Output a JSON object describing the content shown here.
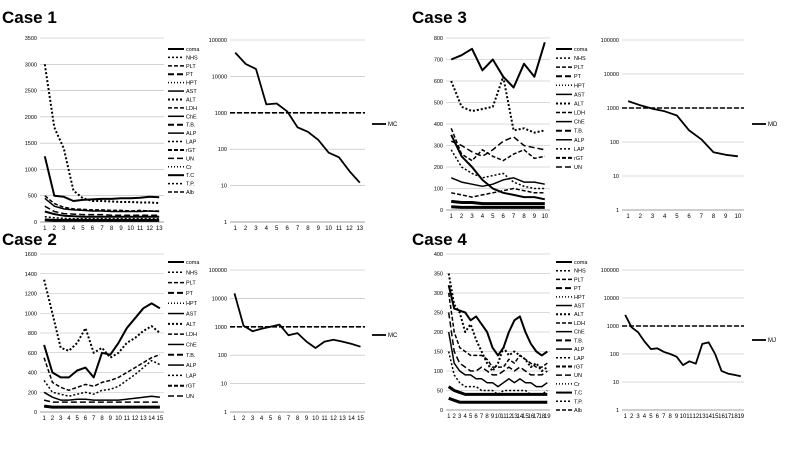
{
  "colors": {
    "line": "#000000",
    "grid": "#b8b8b8",
    "axis": "#888888"
  },
  "chart_data": [
    {
      "case_label": "Case 1",
      "type": "line",
      "x": [
        1,
        2,
        3,
        4,
        5,
        6,
        7,
        8,
        9,
        10,
        11,
        12,
        13
      ],
      "ylim": [
        0,
        3500
      ],
      "yticks": [
        0,
        500,
        1000,
        1500,
        2000,
        2500,
        3000,
        3500
      ],
      "legend": [
        "coma",
        "NHS",
        "PLT",
        "PT",
        "HPT",
        "AST",
        "ALT",
        "LDH",
        "ChE",
        "T.B.",
        "ALP",
        "LAP",
        "rGT",
        "UN",
        "Cr",
        "T.C",
        "T.P.",
        "Alb"
      ],
      "series": [
        {
          "values": [
            3000,
            1800,
            1400,
            600,
            450,
            400,
            400,
            390,
            380,
            380,
            370,
            370,
            360
          ],
          "dash": "2,2",
          "width": 2
        },
        {
          "values": [
            1250,
            500,
            480,
            400,
            420,
            430,
            440,
            440,
            450,
            450,
            460,
            480,
            470
          ],
          "dash": "",
          "width": 2
        },
        {
          "values": [
            500,
            350,
            280,
            250,
            240,
            230,
            230,
            220,
            220,
            210,
            220,
            210,
            210
          ],
          "dash": "4,2",
          "width": 1.5
        },
        {
          "values": [
            450,
            300,
            250,
            230,
            220,
            210,
            210,
            200,
            200,
            200,
            200,
            210,
            200
          ],
          "dash": "",
          "width": 1.5
        },
        {
          "values": [
            300,
            200,
            160,
            150,
            140,
            140,
            140,
            130,
            130,
            130,
            130,
            130,
            130
          ],
          "dash": "6,3",
          "width": 1.5
        },
        {
          "values": [
            200,
            150,
            120,
            110,
            100,
            100,
            100,
            100,
            100,
            100,
            100,
            100,
            100
          ],
          "dash": "",
          "width": 2
        },
        {
          "values": [
            100,
            80,
            70,
            60,
            60,
            60,
            60,
            60,
            60,
            60,
            60,
            60,
            60
          ],
          "dash": "2,2",
          "width": 1.5
        },
        {
          "values": [
            40,
            30,
            30,
            30,
            30,
            30,
            30,
            30,
            30,
            30,
            30,
            30,
            30
          ],
          "dash": "",
          "width": 3
        }
      ],
      "side": {
        "label": "MC",
        "scale": "log",
        "ylim": [
          1,
          100000
        ],
        "yticks": [
          1,
          10,
          100,
          1000,
          10000,
          100000
        ],
        "threshold": 1000,
        "x": [
          1,
          2,
          3,
          4,
          5,
          6,
          7,
          8,
          9,
          10,
          11,
          12,
          13
        ],
        "values": [
          45000,
          22000,
          16000,
          1700,
          1800,
          1100,
          400,
          300,
          180,
          80,
          60,
          25,
          12
        ]
      }
    },
    {
      "case_label": "Case 2",
      "type": "line",
      "x": [
        1,
        2,
        3,
        4,
        5,
        6,
        7,
        8,
        9,
        10,
        11,
        12,
        13,
        14,
        15
      ],
      "ylim": [
        0,
        1600
      ],
      "yticks": [
        0,
        200,
        400,
        600,
        800,
        1000,
        1200,
        1400,
        1600
      ],
      "legend": [
        "coma",
        "NHS",
        "PLT",
        "PT",
        "HPT",
        "AST",
        "ALT",
        "LDH",
        "ChE",
        "T.B.",
        "ALP",
        "LAP",
        "rGT",
        "UN"
      ],
      "series": [
        {
          "values": [
            1340,
            1000,
            650,
            620,
            700,
            850,
            600,
            650,
            550,
            600,
            700,
            750,
            820,
            870,
            800
          ],
          "dash": "2,2",
          "width": 2
        },
        {
          "values": [
            680,
            400,
            350,
            350,
            420,
            450,
            350,
            600,
            580,
            700,
            850,
            950,
            1050,
            1100,
            1050
          ],
          "dash": "",
          "width": 2
        },
        {
          "values": [
            550,
            300,
            250,
            220,
            250,
            280,
            260,
            300,
            320,
            350,
            400,
            450,
            500,
            550,
            580
          ],
          "dash": "4,2",
          "width": 1.5
        },
        {
          "values": [
            320,
            200,
            180,
            160,
            180,
            200,
            180,
            220,
            230,
            260,
            320,
            380,
            450,
            520,
            480
          ],
          "dash": "2,2",
          "width": 1.5
        },
        {
          "values": [
            200,
            150,
            120,
            120,
            130,
            130,
            120,
            120,
            120,
            120,
            130,
            140,
            150,
            160,
            150
          ],
          "dash": "",
          "width": 1.5
        },
        {
          "values": [
            120,
            100,
            100,
            100,
            100,
            100,
            100,
            100,
            100,
            100,
            100,
            100,
            100,
            100,
            100
          ],
          "dash": "6,3",
          "width": 1.5
        },
        {
          "values": [
            60,
            50,
            50,
            50,
            50,
            50,
            50,
            50,
            50,
            50,
            50,
            50,
            50,
            50,
            50
          ],
          "dash": "",
          "width": 3
        }
      ],
      "side": {
        "label": "MC",
        "scale": "log",
        "ylim": [
          1,
          100000
        ],
        "yticks": [
          1,
          10,
          100,
          1000,
          10000,
          100000
        ],
        "threshold": 1000,
        "x": [
          1,
          2,
          3,
          4,
          5,
          6,
          7,
          8,
          9,
          10,
          11,
          12,
          13,
          14,
          15
        ],
        "values": [
          15000,
          1100,
          700,
          850,
          1000,
          1200,
          500,
          600,
          300,
          180,
          300,
          350,
          300,
          250,
          200
        ]
      }
    },
    {
      "case_label": "Case 3",
      "type": "line",
      "x": [
        1,
        2,
        3,
        4,
        5,
        6,
        7,
        8,
        9,
        10
      ],
      "ylim": [
        0,
        800
      ],
      "yticks": [
        0,
        100,
        200,
        300,
        400,
        500,
        600,
        700,
        800
      ],
      "legend": [
        "coma",
        "NHS",
        "PLT",
        "PT",
        "HPT",
        "AST",
        "ALT",
        "LDH",
        "ChE",
        "T.B.",
        "ALP",
        "LAP",
        "rGT",
        "UN"
      ],
      "series": [
        {
          "values": [
            700,
            720,
            750,
            650,
            700,
            620,
            570,
            680,
            620,
            780
          ],
          "dash": "",
          "width": 2
        },
        {
          "values": [
            600,
            480,
            460,
            470,
            480,
            620,
            370,
            380,
            360,
            370
          ],
          "dash": "2,2",
          "width": 2
        },
        {
          "values": [
            380,
            260,
            230,
            280,
            250,
            230,
            260,
            280,
            240,
            250
          ],
          "dash": "4,2",
          "width": 1.5
        },
        {
          "values": [
            350,
            250,
            200,
            140,
            100,
            80,
            70,
            60,
            60,
            50
          ],
          "dash": "",
          "width": 2
        },
        {
          "values": [
            320,
            300,
            270,
            250,
            280,
            320,
            340,
            300,
            290,
            280
          ],
          "dash": "6,3",
          "width": 1.5
        },
        {
          "values": [
            280,
            200,
            170,
            150,
            160,
            170,
            130,
            110,
            100,
            100
          ],
          "dash": "2,2",
          "width": 1.5
        },
        {
          "values": [
            150,
            130,
            120,
            110,
            120,
            140,
            150,
            130,
            130,
            120
          ],
          "dash": "",
          "width": 1.5
        },
        {
          "values": [
            80,
            70,
            60,
            70,
            80,
            90,
            100,
            90,
            80,
            80
          ],
          "dash": "4,2",
          "width": 1.5
        },
        {
          "values": [
            40,
            35,
            35,
            30,
            30,
            30,
            30,
            30,
            30,
            30
          ],
          "dash": "",
          "width": 3
        },
        {
          "values": [
            15,
            12,
            12,
            12,
            12,
            12,
            12,
            12,
            12,
            12
          ],
          "dash": "",
          "width": 3
        }
      ],
      "side": {
        "label": "MD",
        "scale": "log",
        "ylim": [
          1,
          100000
        ],
        "yticks": [
          1,
          10,
          100,
          1000,
          10000,
          100000
        ],
        "threshold": 1000,
        "x": [
          1,
          2,
          3,
          4,
          5,
          6,
          7,
          8,
          9,
          10
        ],
        "values": [
          1600,
          1200,
          950,
          800,
          600,
          220,
          120,
          50,
          42,
          38
        ]
      }
    },
    {
      "case_label": "Case 4",
      "type": "line",
      "x": [
        1,
        2,
        3,
        4,
        5,
        6,
        7,
        8,
        9,
        10,
        11,
        12,
        13,
        14,
        15,
        16,
        17,
        18,
        19
      ],
      "ylim": [
        0,
        400
      ],
      "yticks": [
        0,
        50,
        100,
        150,
        200,
        250,
        300,
        350,
        400
      ],
      "legend": [
        "coma",
        "NHS",
        "PLT",
        "PT",
        "HPT",
        "AST",
        "ALT",
        "LDH",
        "ChE",
        "T.B.",
        "ALP",
        "LAP",
        "rGT",
        "UN",
        "Cr",
        "T.C",
        "T.P.",
        "Alb"
      ],
      "series": [
        {
          "values": [
            350,
            270,
            250,
            200,
            220,
            180,
            150,
            120,
            100,
            120,
            160,
            140,
            150,
            140,
            130,
            110,
            120,
            100,
            110
          ],
          "dash": "2,2",
          "width": 2
        },
        {
          "values": [
            320,
            260,
            255,
            250,
            230,
            240,
            220,
            200,
            160,
            140,
            160,
            200,
            230,
            240,
            200,
            170,
            150,
            140,
            150
          ],
          "dash": "",
          "width": 2
        },
        {
          "values": [
            300,
            200,
            160,
            150,
            140,
            140,
            140,
            130,
            110,
            110,
            110,
            130,
            120,
            140,
            130,
            120,
            110,
            110,
            120
          ],
          "dash": "4,2",
          "width": 1.5
        },
        {
          "values": [
            250,
            150,
            120,
            110,
            100,
            100,
            110,
            100,
            90,
            90,
            100,
            110,
            100,
            110,
            100,
            90,
            90,
            90,
            100
          ],
          "dash": "6,3",
          "width": 1.5
        },
        {
          "values": [
            200,
            120,
            100,
            90,
            90,
            80,
            80,
            70,
            70,
            60,
            70,
            80,
            70,
            80,
            70,
            70,
            60,
            60,
            70
          ],
          "dash": "",
          "width": 1.5
        },
        {
          "values": [
            150,
            90,
            70,
            60,
            60,
            60,
            50,
            50,
            50,
            40,
            50,
            50,
            50,
            50,
            50,
            40,
            40,
            40,
            50
          ],
          "dash": "2,2",
          "width": 1.5
        },
        {
          "values": [
            60,
            50,
            45,
            40,
            40,
            40,
            40,
            40,
            40,
            40,
            40,
            40,
            40,
            40,
            40,
            40,
            40,
            40,
            40
          ],
          "dash": "",
          "width": 3
        },
        {
          "values": [
            30,
            25,
            20,
            20,
            20,
            20,
            20,
            20,
            20,
            20,
            20,
            20,
            20,
            20,
            20,
            20,
            20,
            20,
            20
          ],
          "dash": "",
          "width": 3
        }
      ],
      "side": {
        "label": "MJ",
        "scale": "log",
        "ylim": [
          1,
          100000
        ],
        "yticks": [
          1,
          10,
          100,
          1000,
          10000,
          100000
        ],
        "threshold": 1000,
        "x": [
          1,
          2,
          3,
          4,
          5,
          6,
          7,
          8,
          9,
          10,
          11,
          12,
          13,
          14,
          15,
          16,
          17,
          18,
          19
        ],
        "values": [
          2500,
          900,
          600,
          280,
          150,
          160,
          120,
          100,
          80,
          40,
          55,
          45,
          230,
          260,
          100,
          25,
          20,
          18,
          16
        ]
      }
    }
  ]
}
